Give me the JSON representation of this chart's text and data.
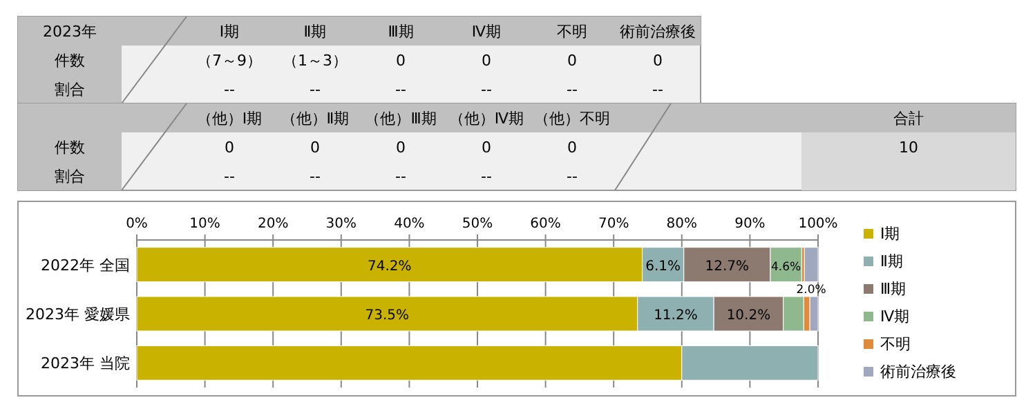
{
  "chart_data": [
    {
      "type": "other",
      "title": "2023年",
      "categories": [
        "Ⅰ期",
        "Ⅱ期",
        "Ⅲ期",
        "Ⅳ期",
        "不明",
        "術前治療後"
      ],
      "y_categories": [
        "件数",
        "割合"
      ],
      "cell_labels": [
        [
          "（7～9）",
          "（1～3）",
          "0",
          "0",
          "0",
          "0"
        ],
        [
          "--",
          "--",
          "--",
          "--",
          "--",
          "--"
        ]
      ]
    },
    {
      "type": "other",
      "categories": [
        "（他）Ⅰ期",
        "（他）Ⅱ期",
        "（他）Ⅲ期",
        "（他）Ⅳ期",
        "（他）不明",
        null,
        "合計"
      ],
      "y_categories": [
        "件数",
        "割合"
      ],
      "cell_labels": [
        [
          "0",
          "0",
          "0",
          "0",
          "0",
          null,
          "10"
        ],
        [
          "--",
          "--",
          "--",
          "--",
          "--",
          null,
          null
        ]
      ]
    },
    {
      "type": "bar",
      "orientation": "horizontal",
      "stacked": true,
      "categories": [
        "2022年 全国",
        "2023年 愛媛県",
        "2023年 当院"
      ],
      "xlim": [
        0,
        100
      ],
      "xticks": [
        {
          "value": 0,
          "label": "0%"
        },
        {
          "value": 10,
          "label": "10%"
        },
        {
          "value": 20,
          "label": "20%"
        },
        {
          "value": 30,
          "label": "30%"
        },
        {
          "value": 40,
          "label": "40%"
        },
        {
          "value": 50,
          "label": "50%"
        },
        {
          "value": 60,
          "label": "60%"
        },
        {
          "value": 70,
          "label": "70%"
        },
        {
          "value": 80,
          "label": "80%"
        },
        {
          "value": 90,
          "label": "90%"
        },
        {
          "value": 100,
          "label": "100%"
        }
      ],
      "grid": "x",
      "legend": "right",
      "series": [
        {
          "name": "Ⅰ期",
          "color": "#c9b300",
          "values": [
            74.2,
            73.5,
            80
          ],
          "value_labels": [
            "74.2%",
            "73.5%",
            null
          ]
        },
        {
          "name": "Ⅱ期",
          "color": "#8fb0b0",
          "values": [
            6.1,
            11.2,
            20
          ],
          "value_labels": [
            "6.1%",
            "11.2%",
            null
          ]
        },
        {
          "name": "Ⅲ期",
          "color": "#8c7a70",
          "values": [
            12.7,
            10.2,
            0
          ],
          "value_labels": [
            "12.7%",
            "10.2%",
            null
          ]
        },
        {
          "name": "Ⅳ期",
          "color": "#8fb88f",
          "values": [
            4.6,
            3.0,
            0
          ],
          "value_labels": [
            "4.6%",
            null,
            null
          ]
        },
        {
          "name": "不明",
          "color": "#e08a3c",
          "values": [
            0.4,
            0.9,
            0
          ],
          "value_labels": [
            null,
            null,
            null
          ]
        },
        {
          "name": "術前治療後",
          "color": "#a0a8c0",
          "values": [
            2.0,
            1.2,
            0
          ],
          "value_labels": [
            "2.0%",
            null,
            null
          ]
        }
      ]
    }
  ]
}
